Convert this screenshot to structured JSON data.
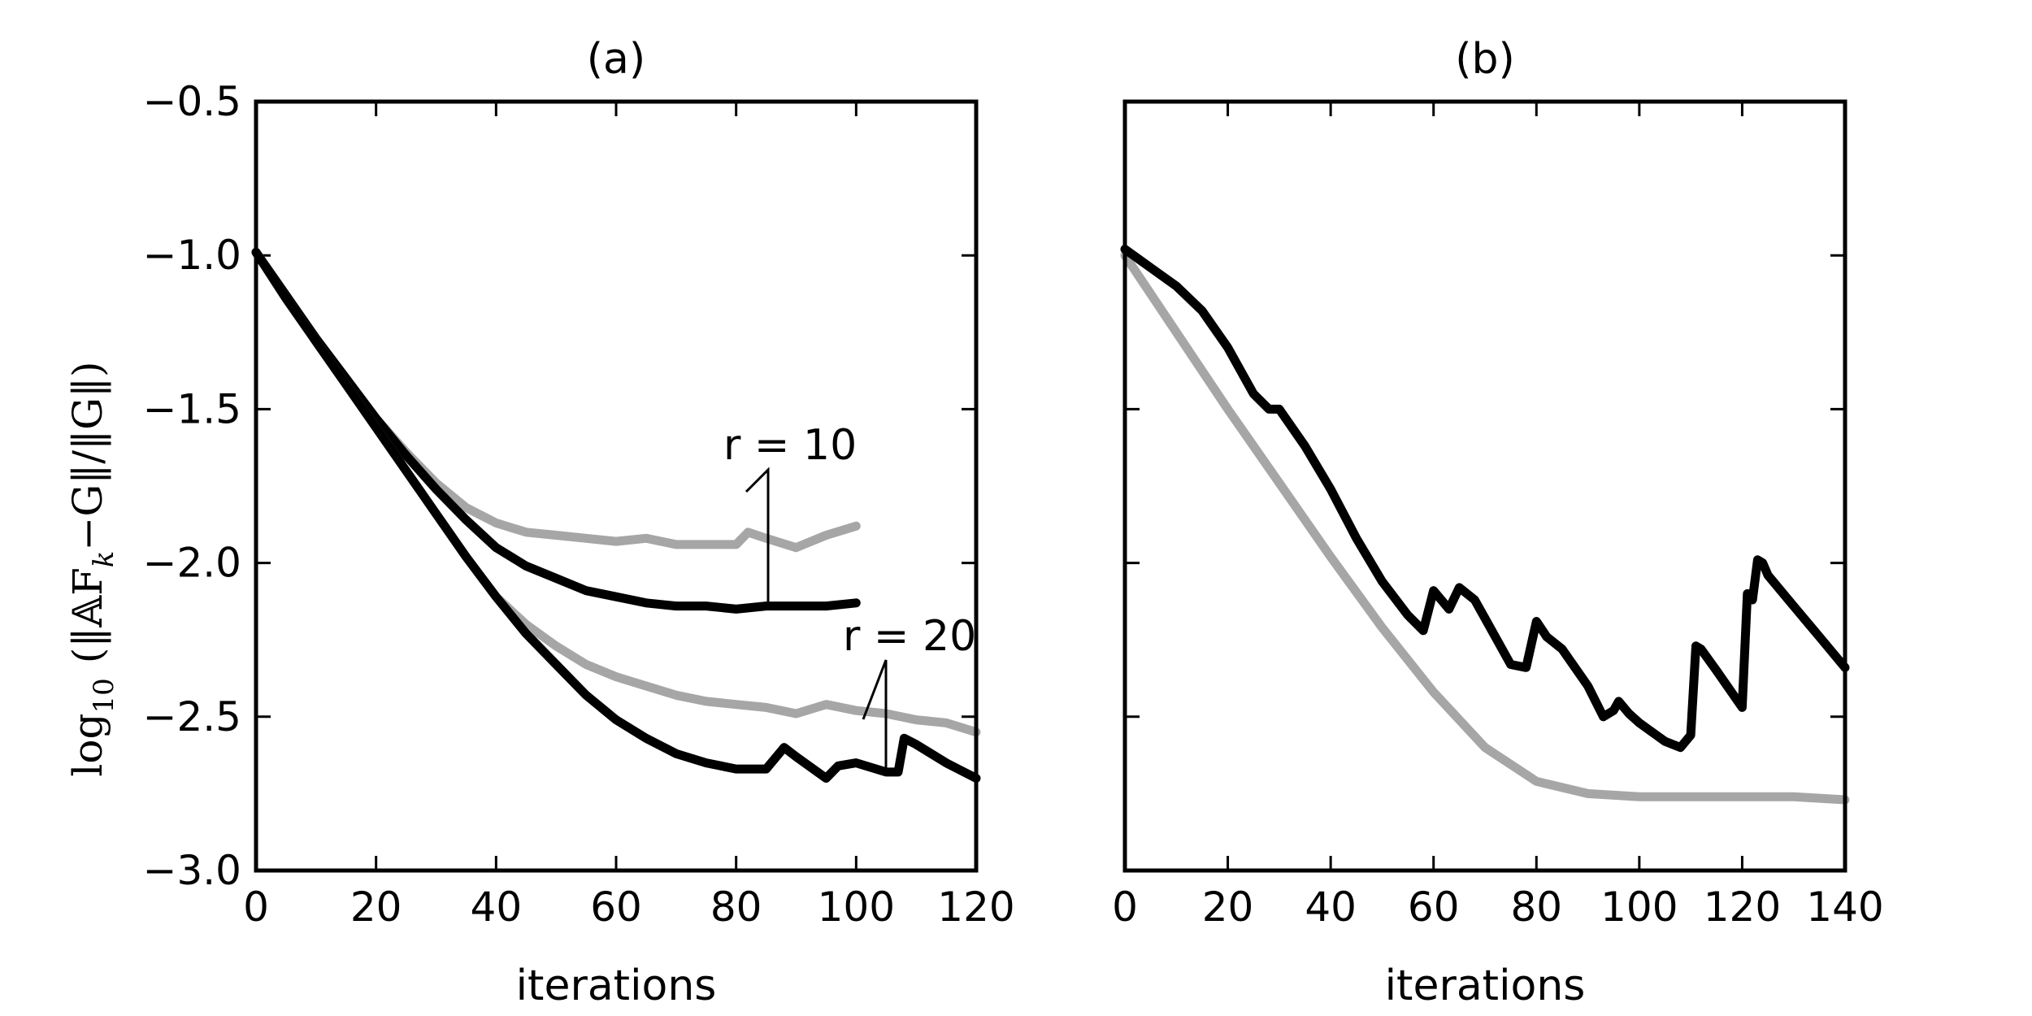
{
  "ylabel": {
    "prefix": "log",
    "sub": "10",
    "body": "(‖𝔸F",
    "body_sub": "k",
    "tail": "−G‖/‖G‖)"
  },
  "chart_data": [
    {
      "type": "line",
      "title": "(a)",
      "xlabel": "iterations",
      "ylabel": "log10 (||AF_k - G|| / ||G||)",
      "xlim": [
        0,
        120
      ],
      "ylim": [
        -3.0,
        -0.5
      ],
      "xticks": [
        0,
        20,
        40,
        60,
        80,
        100,
        120
      ],
      "yticks": [
        -3.0,
        -2.5,
        -2.0,
        -1.5,
        -1.0,
        -0.5
      ],
      "ytick_labels": [
        "−3.0",
        "−2.5",
        "−2.0",
        "−1.5",
        "−1.0",
        "−0.5"
      ],
      "annotations": [
        {
          "text": "r = 10",
          "at": [
            84,
            -1.72
          ],
          "points_to": [
            [
              82,
              -1.9
            ],
            [
              85,
              -2.15
            ]
          ]
        },
        {
          "text": "r = 20",
          "at": [
            103,
            -2.35
          ],
          "points_to": [
            [
              101,
              -2.5
            ],
            [
              104.5,
              -2.68
            ]
          ]
        }
      ],
      "series": [
        {
          "name": "r = 10 (gray)",
          "color": "#a6a6a6",
          "x": [
            0,
            5,
            10,
            15,
            20,
            25,
            30,
            35,
            40,
            45,
            50,
            55,
            60,
            65,
            70,
            75,
            80,
            82,
            85,
            90,
            95,
            100
          ],
          "y": [
            -0.99,
            -1.13,
            -1.27,
            -1.4,
            -1.53,
            -1.64,
            -1.74,
            -1.82,
            -1.87,
            -1.9,
            -1.91,
            -1.92,
            -1.93,
            -1.92,
            -1.94,
            -1.94,
            -1.94,
            -1.9,
            -1.92,
            -1.95,
            -1.91,
            -1.88
          ]
        },
        {
          "name": "r = 10 (black)",
          "color": "#000000",
          "x": [
            0,
            5,
            10,
            15,
            20,
            25,
            30,
            35,
            40,
            45,
            50,
            55,
            60,
            65,
            70,
            75,
            80,
            85,
            90,
            95,
            100
          ],
          "y": [
            -0.99,
            -1.13,
            -1.27,
            -1.4,
            -1.53,
            -1.65,
            -1.76,
            -1.86,
            -1.95,
            -2.01,
            -2.05,
            -2.09,
            -2.11,
            -2.13,
            -2.14,
            -2.14,
            -2.15,
            -2.14,
            -2.14,
            -2.14,
            -2.13
          ]
        },
        {
          "name": "r = 20 (gray)",
          "color": "#a6a6a6",
          "x": [
            0,
            5,
            10,
            15,
            20,
            25,
            30,
            35,
            40,
            45,
            50,
            55,
            60,
            65,
            70,
            75,
            80,
            85,
            90,
            95,
            100,
            105,
            110,
            115,
            120
          ],
          "y": [
            -0.99,
            -1.14,
            -1.28,
            -1.42,
            -1.56,
            -1.7,
            -1.84,
            -1.98,
            -2.11,
            -2.2,
            -2.27,
            -2.33,
            -2.37,
            -2.4,
            -2.43,
            -2.45,
            -2.46,
            -2.47,
            -2.49,
            -2.46,
            -2.48,
            -2.49,
            -2.51,
            -2.52,
            -2.55
          ]
        },
        {
          "name": "r = 20 (black)",
          "color": "#000000",
          "x": [
            0,
            5,
            10,
            15,
            20,
            25,
            30,
            35,
            40,
            45,
            50,
            55,
            60,
            65,
            70,
            75,
            80,
            85,
            88,
            90,
            95,
            97,
            100,
            105,
            107,
            108,
            110,
            115,
            120
          ],
          "y": [
            -0.99,
            -1.14,
            -1.28,
            -1.42,
            -1.56,
            -1.7,
            -1.84,
            -1.98,
            -2.11,
            -2.23,
            -2.33,
            -2.43,
            -2.51,
            -2.57,
            -2.62,
            -2.65,
            -2.67,
            -2.67,
            -2.6,
            -2.63,
            -2.7,
            -2.66,
            -2.65,
            -2.68,
            -2.68,
            -2.57,
            -2.59,
            -2.65,
            -2.7
          ]
        }
      ]
    },
    {
      "type": "line",
      "title": "(b)",
      "xlabel": "iterations",
      "xlim": [
        0,
        140
      ],
      "ylim": [
        -3.0,
        -0.5
      ],
      "xticks": [
        0,
        20,
        40,
        60,
        80,
        100,
        120,
        140
      ],
      "yticks": [
        -3.0,
        -2.5,
        -2.0,
        -1.5,
        -1.0,
        -0.5
      ],
      "series": [
        {
          "name": "gray",
          "color": "#a6a6a6",
          "x": [
            0,
            10,
            20,
            30,
            40,
            50,
            60,
            70,
            80,
            90,
            100,
            110,
            120,
            130,
            140
          ],
          "y": [
            -1.0,
            -1.25,
            -1.5,
            -1.74,
            -1.98,
            -2.21,
            -2.42,
            -2.6,
            -2.71,
            -2.75,
            -2.76,
            -2.76,
            -2.76,
            -2.76,
            -2.77
          ]
        },
        {
          "name": "black",
          "color": "#000000",
          "x": [
            0,
            5,
            10,
            15,
            20,
            25,
            28,
            30,
            35,
            40,
            45,
            50,
            55,
            58,
            60,
            62,
            63,
            65,
            68,
            70,
            75,
            78,
            80,
            82,
            85,
            90,
            93,
            95,
            96,
            98,
            100,
            105,
            108,
            110,
            111,
            112,
            115,
            120,
            121,
            122,
            123,
            124,
            125,
            130,
            135,
            140
          ],
          "y": [
            -0.98,
            -1.04,
            -1.1,
            -1.18,
            -1.3,
            -1.45,
            -1.5,
            -1.5,
            -1.62,
            -1.76,
            -1.92,
            -2.06,
            -2.17,
            -2.22,
            -2.09,
            -2.13,
            -2.15,
            -2.08,
            -2.12,
            -2.18,
            -2.33,
            -2.34,
            -2.19,
            -2.24,
            -2.28,
            -2.4,
            -2.5,
            -2.48,
            -2.45,
            -2.49,
            -2.52,
            -2.58,
            -2.6,
            -2.56,
            -2.27,
            -2.28,
            -2.35,
            -2.47,
            -2.1,
            -2.12,
            -1.99,
            -2.0,
            -2.04,
            -2.14,
            -2.24,
            -2.34
          ]
        }
      ]
    }
  ]
}
